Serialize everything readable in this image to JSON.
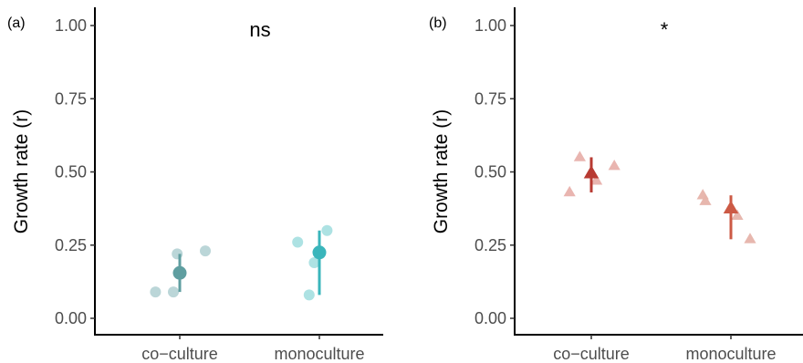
{
  "chart_data": [
    {
      "type": "scatter",
      "panel_label": "(a)",
      "significance": "ns",
      "ylabel": "Growth rate (r)",
      "xlabel": "",
      "categories": [
        "co−culture",
        "monoculture"
      ],
      "ylim": [
        0.0,
        1.0
      ],
      "yticks": [
        "0.00",
        "0.25",
        "0.50",
        "0.75",
        "1.00"
      ],
      "yticks_values": [
        0.0,
        0.25,
        0.5,
        0.75,
        1.0
      ],
      "marker": "circle",
      "grid": false,
      "groups": [
        {
          "category": "co−culture",
          "color": "#5f9ea0",
          "raw_color": "#b7d4d6",
          "points": [
            {
              "offset": -0.19,
              "y": 0.09
            },
            {
              "offset": -0.05,
              "y": 0.09
            },
            {
              "offset": -0.02,
              "y": 0.22
            },
            {
              "offset": 0.2,
              "y": 0.23
            }
          ],
          "mean": 0.155,
          "error": [
            0.09,
            0.22
          ]
        },
        {
          "category": "monoculture",
          "color": "#3ab5bb",
          "raw_color": "#a9e0e2",
          "points": [
            {
              "offset": -0.17,
              "y": 0.26
            },
            {
              "offset": -0.08,
              "y": 0.08
            },
            {
              "offset": -0.04,
              "y": 0.19
            },
            {
              "offset": 0.06,
              "y": 0.3
            }
          ],
          "mean": 0.225,
          "error": [
            0.08,
            0.3
          ]
        }
      ]
    },
    {
      "type": "scatter",
      "panel_label": "(b)",
      "significance": "*",
      "ylabel": "Growth rate (r)",
      "xlabel": "",
      "categories": [
        "co−culture",
        "monoculture"
      ],
      "ylim": [
        0.0,
        1.0
      ],
      "yticks": [
        "0.00",
        "0.25",
        "0.50",
        "0.75",
        "1.00"
      ],
      "yticks_values": [
        0.0,
        0.25,
        0.5,
        0.75,
        1.0
      ],
      "marker": "triangle",
      "grid": false,
      "groups": [
        {
          "category": "co−culture",
          "color": "#b83a32",
          "raw_color": "#e8b1ac",
          "points": [
            {
              "offset": -0.17,
              "y": 0.43
            },
            {
              "offset": -0.09,
              "y": 0.55
            },
            {
              "offset": 0.04,
              "y": 0.47
            },
            {
              "offset": 0.18,
              "y": 0.52
            }
          ],
          "mean": 0.495,
          "error": [
            0.43,
            0.55
          ]
        },
        {
          "category": "monoculture",
          "color": "#cc5a45",
          "raw_color": "#e6b3aa",
          "points": [
            {
              "offset": -0.22,
              "y": 0.42
            },
            {
              "offset": -0.2,
              "y": 0.4
            },
            {
              "offset": 0.05,
              "y": 0.35
            },
            {
              "offset": 0.15,
              "y": 0.27
            }
          ],
          "mean": 0.375,
          "error": [
            0.27,
            0.42
          ]
        }
      ]
    }
  ]
}
